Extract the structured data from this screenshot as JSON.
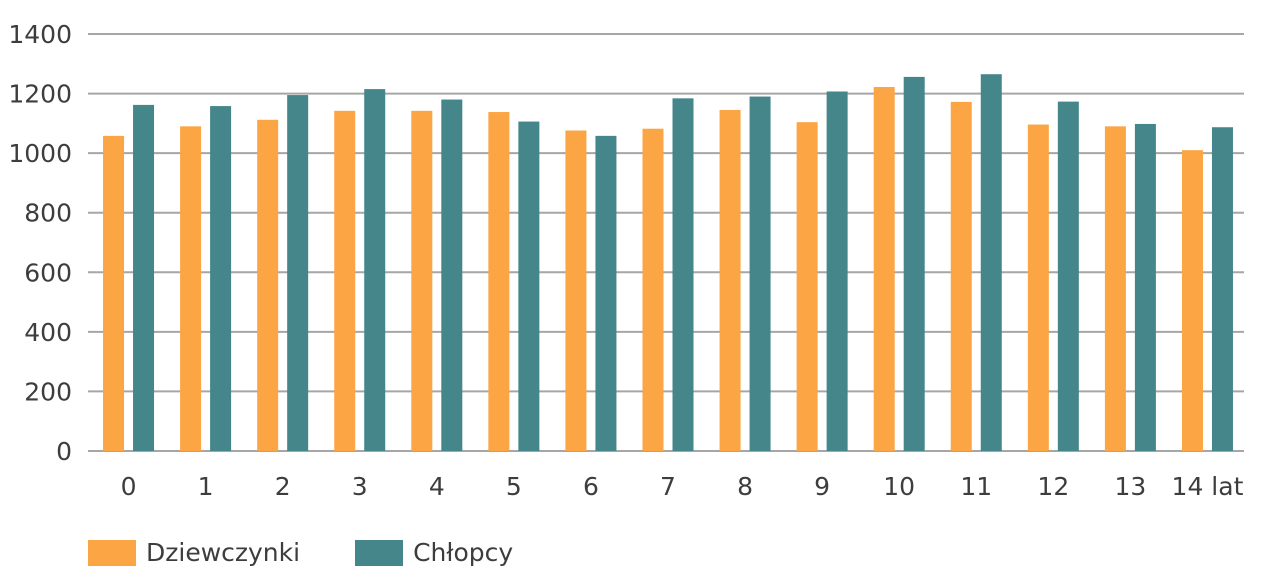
{
  "chart_data": {
    "type": "bar",
    "categories": [
      "0",
      "1",
      "2",
      "3",
      "4",
      "5",
      "6",
      "7",
      "8",
      "9",
      "10",
      "11",
      "12",
      "13",
      "14 lat"
    ],
    "series": [
      {
        "name": "Dziewczynki",
        "color": "#FBA544",
        "values": [
          1058,
          1090,
          1112,
          1142,
          1142,
          1138,
          1076,
          1082,
          1145,
          1104,
          1222,
          1172,
          1096,
          1090,
          1010
        ]
      },
      {
        "name": "Chłopcy",
        "color": "#44868A",
        "values": [
          1162,
          1158,
          1195,
          1215,
          1180,
          1106,
          1058,
          1184,
          1190,
          1207,
          1256,
          1265,
          1173,
          1098,
          1087
        ]
      }
    ],
    "yticks": [
      "0",
      "200",
      "400",
      "600",
      "800",
      "1000",
      "1200",
      "1400"
    ],
    "ylim": [
      0,
      1400
    ],
    "grid": true,
    "gridColor": "#A6A6A6",
    "legend_position": "bottom-left"
  }
}
